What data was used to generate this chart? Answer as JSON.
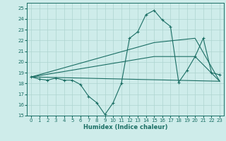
{
  "xlabel": "Humidex (Indice chaleur)",
  "ylabel": "",
  "bg_color": "#ceecea",
  "grid_color": "#aed4d0",
  "line_color": "#1a6e64",
  "xlim": [
    -0.5,
    23.5
  ],
  "ylim": [
    15,
    25.5
  ],
  "xticks": [
    0,
    1,
    2,
    3,
    4,
    5,
    6,
    7,
    8,
    9,
    10,
    11,
    12,
    13,
    14,
    15,
    16,
    17,
    18,
    19,
    20,
    21,
    22,
    23
  ],
  "yticks": [
    15,
    16,
    17,
    18,
    19,
    20,
    21,
    22,
    23,
    24,
    25
  ],
  "series1_x": [
    0,
    1,
    2,
    3,
    4,
    5,
    6,
    7,
    8,
    9,
    10,
    11,
    12,
    13,
    14,
    15,
    16,
    17,
    18,
    19,
    20,
    21,
    22,
    23
  ],
  "series1_y": [
    18.6,
    18.4,
    18.3,
    18.5,
    18.3,
    18.3,
    17.9,
    16.8,
    16.2,
    15.1,
    16.2,
    18.0,
    22.2,
    22.8,
    24.4,
    24.8,
    23.9,
    23.3,
    18.1,
    19.2,
    20.5,
    22.2,
    19.0,
    18.8
  ],
  "series2_x": [
    0,
    23
  ],
  "series2_y": [
    18.6,
    18.2
  ],
  "series3_x": [
    0,
    15,
    20,
    23
  ],
  "series3_y": [
    18.6,
    21.8,
    22.2,
    18.2
  ],
  "series4_x": [
    0,
    15,
    20,
    23
  ],
  "series4_y": [
    18.6,
    20.5,
    20.5,
    18.2
  ],
  "marker": "+"
}
